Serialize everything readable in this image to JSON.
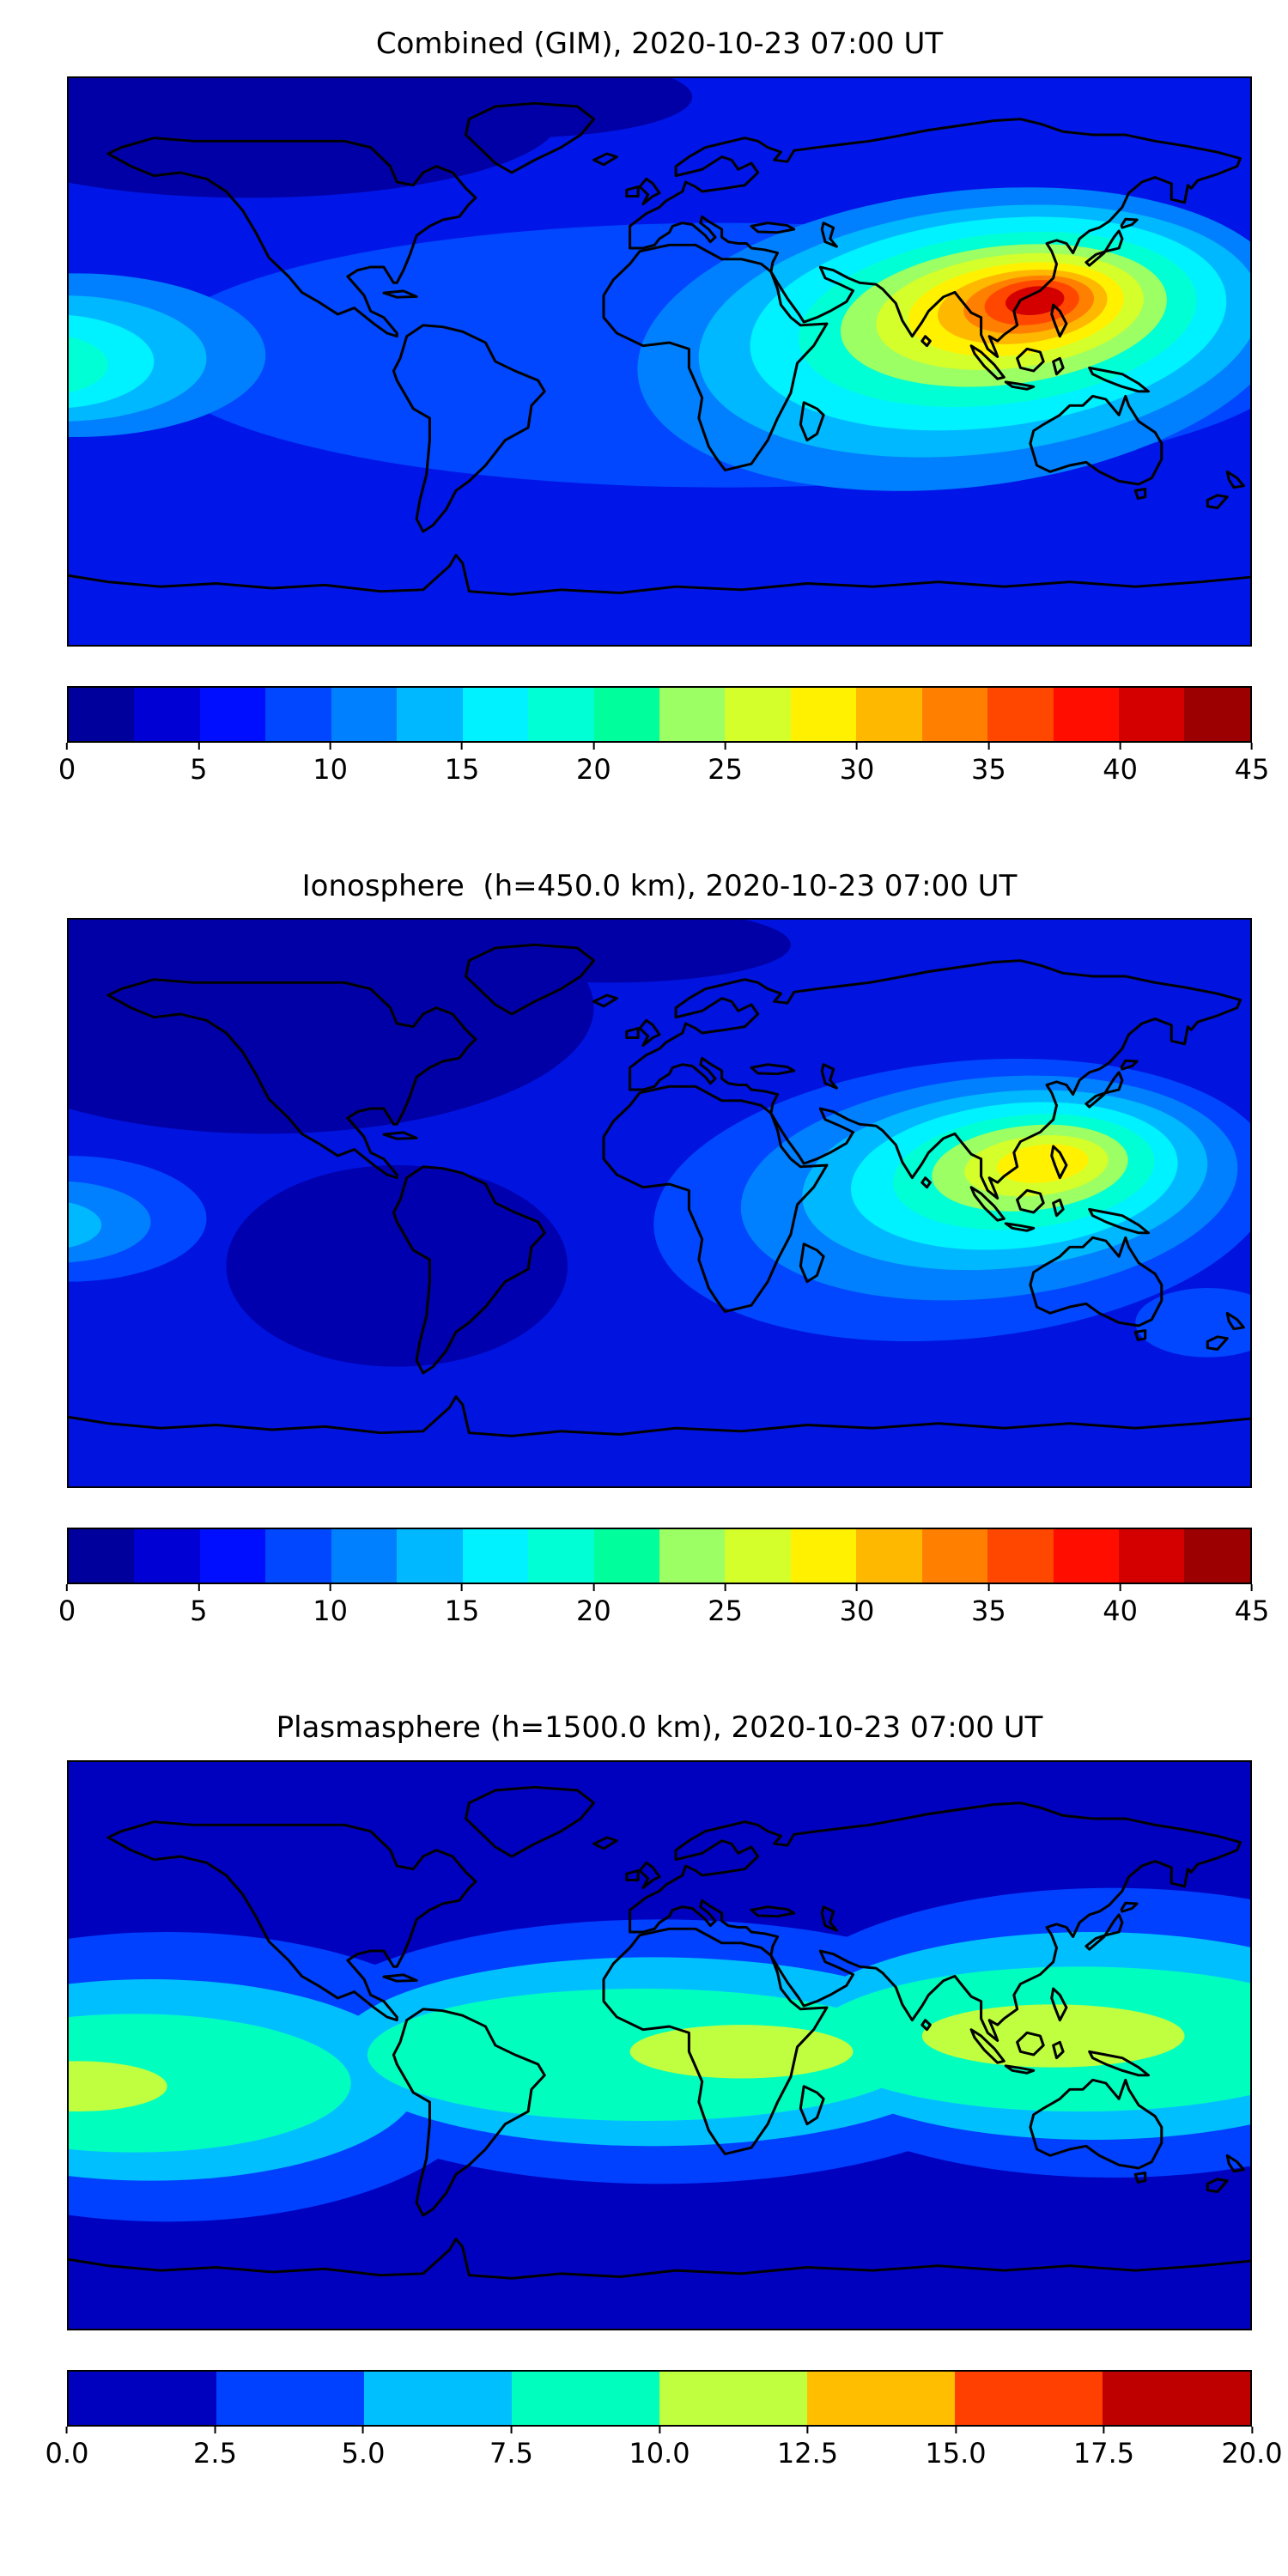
{
  "figure": {
    "panels": [
      {
        "id": "combined",
        "title": "Combined (GIM), 2020-10-23 07:00 UT",
        "colorbar": {
          "tick_labels": [
            "0",
            "5",
            "10",
            "15",
            "20",
            "25",
            "30",
            "35",
            "40",
            "45"
          ],
          "vmin": 0,
          "vmax": 45,
          "level_step": 2.5,
          "segment_colors": [
            "#00009C",
            "#0000D4",
            "#000EFF",
            "#0047FF",
            "#0080FF",
            "#00B8FF",
            "#00F1FF",
            "#00FFD4",
            "#00FF9C",
            "#9CFF63",
            "#D4FF2B",
            "#FFF100",
            "#FFB800",
            "#FF8000",
            "#FF4700",
            "#FF0E00",
            "#D40000",
            "#9C0000"
          ]
        }
      },
      {
        "id": "ionosphere",
        "title": "Ionosphere  (h=450.0 km), 2020-10-23 07:00 UT",
        "colorbar": {
          "tick_labels": [
            "0",
            "5",
            "10",
            "15",
            "20",
            "25",
            "30",
            "35",
            "40",
            "45"
          ],
          "vmin": 0,
          "vmax": 45,
          "level_step": 2.5,
          "segment_colors": [
            "#00009C",
            "#0000D4",
            "#000EFF",
            "#0047FF",
            "#0080FF",
            "#00B8FF",
            "#00F1FF",
            "#00FFD4",
            "#00FF9C",
            "#9CFF63",
            "#D4FF2B",
            "#FFF100",
            "#FFB800",
            "#FF8000",
            "#FF4700",
            "#FF0E00",
            "#D40000",
            "#9C0000"
          ]
        }
      },
      {
        "id": "plasmasphere",
        "title": "Plasmasphere (h=1500.0 km), 2020-10-23 07:00 UT",
        "colorbar": {
          "tick_labels": [
            "0.0",
            "2.5",
            "5.0",
            "7.5",
            "10.0",
            "12.5",
            "15.0",
            "17.5",
            "20.0"
          ],
          "vmin": 0,
          "vmax": 20,
          "level_step": 2.5,
          "segment_colors": [
            "#0000BF",
            "#0040FF",
            "#00BFFF",
            "#00FFBF",
            "#BFFF40",
            "#FFBF00",
            "#FF4000",
            "#BF0000"
          ]
        }
      }
    ]
  },
  "chart_data": [
    {
      "type": "heatmap",
      "title": "Combined (GIM), 2020-10-23 07:00 UT",
      "projection": "equirectangular world map",
      "x_range_lon": [
        -180,
        180
      ],
      "y_range_lat": [
        -90,
        90
      ],
      "colormap": "jet",
      "value_range": [
        0,
        45
      ],
      "contour_level_step": 2.5,
      "colorbar_ticks": [
        0,
        5,
        10,
        15,
        20,
        25,
        30,
        35,
        40,
        45
      ],
      "legend_position": "horizontal colorbar below map",
      "grid": false,
      "features": [
        {
          "feature": "primary TEC maximum",
          "lon": 112,
          "lat": 15,
          "approx_peak": 44,
          "extent": "elongated E-W enhancement from ~40E to ~175E between ~25S and ~40N over South/Southeast Asia"
        },
        {
          "feature": "secondary enhancement",
          "lon": -178,
          "lat": 3,
          "approx_peak": 20,
          "extent": "cyan blob touching left map edge over central Pacific"
        },
        {
          "feature": "minimum region",
          "lon": -120,
          "lat": 65,
          "approx_value": 3,
          "extent": "dark nightside region over North Pacific / North America high latitudes"
        }
      ]
    },
    {
      "type": "heatmap",
      "title": "Ionosphere  (h=450.0 km), 2020-10-23 07:00 UT",
      "projection": "equirectangular world map",
      "x_range_lon": [
        -180,
        180
      ],
      "y_range_lat": [
        -90,
        90
      ],
      "colormap": "jet",
      "value_range": [
        0,
        45
      ],
      "contour_level_step": 2.5,
      "colorbar_ticks": [
        0,
        5,
        10,
        15,
        20,
        25,
        30,
        35,
        40,
        45
      ],
      "legend_position": "horizontal colorbar below map",
      "grid": false,
      "features": [
        {
          "feature": "primary TEC maximum",
          "lon": 115,
          "lat": 9,
          "approx_peak": 31,
          "extent": "yellow-core enhancement over Southeast Asia / Indonesia, ~60E to ~160E"
        },
        {
          "feature": "secondary enhancement",
          "lon": -178,
          "lat": -5,
          "approx_peak": 13,
          "extent": "small light-blue patch at left map edge"
        },
        {
          "feature": "minimum region",
          "lon": -100,
          "lat": 40,
          "approx_value": 2,
          "extent": "dark navy region covering the Americas and North Pacific (nightside)"
        }
      ]
    },
    {
      "type": "heatmap",
      "title": "Plasmasphere (h=1500.0 km), 2020-10-23 07:00 UT",
      "projection": "equirectangular world map",
      "x_range_lon": [
        -180,
        180
      ],
      "y_range_lat": [
        -90,
        90
      ],
      "colormap": "jet",
      "value_range": [
        0,
        20
      ],
      "contour_level_step": 2.5,
      "colorbar_ticks": [
        0.0,
        2.5,
        5.0,
        7.5,
        10.0,
        12.5,
        15.0,
        17.5,
        20.0
      ],
      "legend_position": "horizontal colorbar below map",
      "grid": false,
      "features": [
        {
          "feature": "equatorial plasmaspheric band",
          "lat_extent": [
            -35,
            30
          ],
          "approx_value_range": [
            5,
            10
          ],
          "extent": "cyan/aqua band spanning all longitudes, following magnetic equator (dips south over Pacific/Americas, north over Asia)"
        },
        {
          "feature": "band maximum over Africa",
          "lon": 25,
          "lat": 0,
          "approx_peak": 12
        },
        {
          "feature": "band maximum over SE Asia / N Australia",
          "lon": 120,
          "lat": 5,
          "approx_peak": 12
        },
        {
          "feature": "band maximum west Pacific (left edge)",
          "lon": -175,
          "lat": -13,
          "approx_peak": 12
        },
        {
          "feature": "high-latitude minimum",
          "approx_value": 2,
          "extent": "dark blue poleward of ~50N and ~50S"
        }
      ]
    }
  ]
}
